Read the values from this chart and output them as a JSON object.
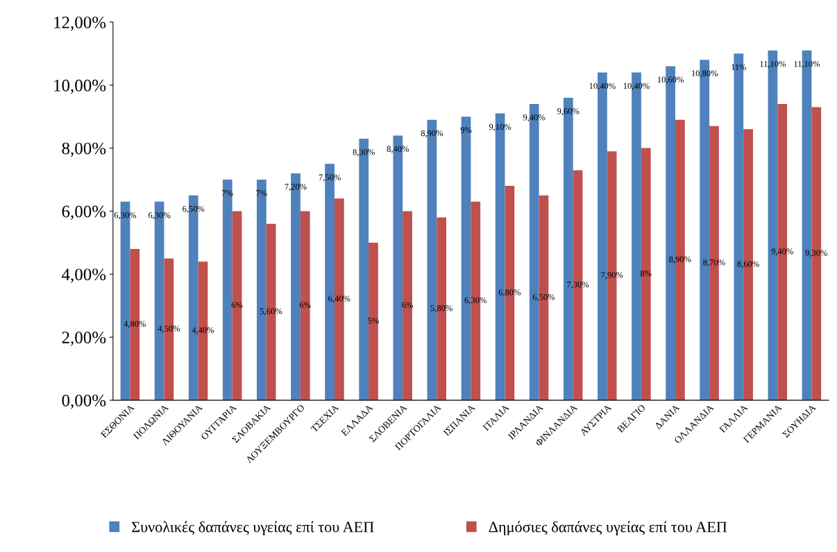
{
  "chart_data": {
    "type": "bar",
    "categories": [
      "ΕΣΘΟΝΙΑ",
      "ΠΟΛΩΝΙΑ",
      "ΛΙΘΟΥΑΝΙΑ",
      "ΟΥΓΓΑΡΙΑ",
      "ΣΛΟΒΑΚΙΑ",
      "ΛΟΥΞΕΜΒΟΥΡΓΟ",
      "ΤΣΕΧΙΑ",
      "ΕΛΛΑΔΑ",
      "ΣΛΟΒΕΝΙΑ",
      "ΠΟΡΤΟΓΑΛΙΑ",
      "ΙΣΠΑΝΙΑ",
      "ΙΤΑΛΙΑ",
      "ΙΡΛΑΝΔΙΑ",
      "ΦΙΝΛΑΝΔΙΑ",
      "ΑΥΣΤΡΙΑ",
      "ΒΕΛΓΙΟ",
      "ΔΑΝΙΑ",
      "ΟΛΛΑΝΔΙΑ",
      "ΓΑΛΛΙΑ",
      "ΓΕΡΜΑΝΙΑ",
      "ΣΟΥΗΔΙΑ"
    ],
    "series": [
      {
        "name": "Συνολικές δαπάνες υγείας επί του ΑΕΠ",
        "color": "#4f81bd",
        "values": [
          6.3,
          6.3,
          6.5,
          7,
          7,
          7.2,
          7.5,
          8.3,
          8.4,
          8.9,
          9,
          9.1,
          9.4,
          9.6,
          10.4,
          10.4,
          10.6,
          10.8,
          11,
          11.1,
          11.1
        ],
        "value_labels": [
          "6,30%",
          "6,30%",
          "6,50%",
          "7%",
          "7%",
          "7,20%",
          "7,50%",
          "8,30%",
          "8,40%",
          "8,90%",
          "9%",
          "9,10%",
          "9,40%",
          "9,60%",
          "10,40%",
          "10,40%",
          "10,60%",
          "10,80%",
          "11%",
          "11,10%",
          "11,10%"
        ]
      },
      {
        "name": "Δημόσιες δαπάνες υγείας επί του ΑΕΠ",
        "color": "#c0504d",
        "values": [
          4.8,
          4.5,
          4.4,
          6,
          5.6,
          6,
          6.4,
          5,
          6,
          5.8,
          6.3,
          6.8,
          6.5,
          7.3,
          7.9,
          8,
          8.9,
          8.7,
          8.6,
          9.4,
          9.3
        ],
        "value_labels": [
          "4,80%",
          "4,50%",
          "4,40%",
          "6%",
          "5,60%",
          "6%",
          "6,40%",
          "5%",
          "6%",
          "5,80%",
          "6,30%",
          "6,80%",
          "6,50%",
          "7,30%",
          "7,90%",
          "8%",
          "8,90%",
          "8,70%",
          "8,60%",
          "9,40%",
          "9,30%"
        ]
      }
    ],
    "ylim": [
      0,
      12
    ],
    "yticks": [
      {
        "value": 0,
        "label": "0,00%"
      },
      {
        "value": 2,
        "label": "2,00%"
      },
      {
        "value": 4,
        "label": "4,00%"
      },
      {
        "value": 6,
        "label": "6,00%"
      },
      {
        "value": 8,
        "label": "8,00%"
      },
      {
        "value": 10,
        "label": "10,00%"
      },
      {
        "value": 12,
        "label": "12,00%"
      }
    ],
    "grid": false,
    "legend": "bottom"
  }
}
